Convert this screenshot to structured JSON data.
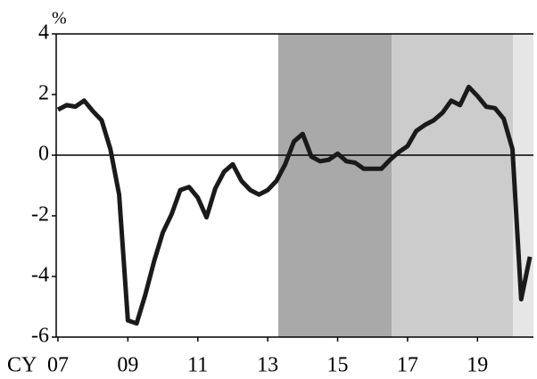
{
  "chart_data": {
    "type": "line",
    "y_unit_label": "%",
    "x_prefix_label": "CY",
    "x": [
      2007,
      2007.25,
      2007.5,
      2007.75,
      2008,
      2008.25,
      2008.5,
      2008.75,
      2009,
      2009.25,
      2009.5,
      2009.75,
      2010,
      2010.25,
      2010.5,
      2010.75,
      2011,
      2011.25,
      2011.5,
      2011.75,
      2012,
      2012.25,
      2012.5,
      2012.75,
      2013,
      2013.25,
      2013.5,
      2013.75,
      2014,
      2014.25,
      2014.5,
      2014.75,
      2015,
      2015.25,
      2015.5,
      2015.75,
      2016,
      2016.25,
      2016.5,
      2016.75,
      2017,
      2017.25,
      2017.5,
      2017.75,
      2018,
      2018.25,
      2018.5,
      2018.75,
      2019,
      2019.25,
      2019.5,
      2019.75,
      2020,
      2020.25,
      2020.5
    ],
    "series": [
      {
        "color": "#1a1a1a",
        "values": [
          1.5,
          1.65,
          1.6,
          1.8,
          1.45,
          1.15,
          0.2,
          -1.3,
          -5.45,
          -5.55,
          -4.6,
          -3.5,
          -2.55,
          -1.95,
          -1.15,
          -1.05,
          -1.4,
          -2.05,
          -1.1,
          -0.55,
          -0.3,
          -0.85,
          -1.15,
          -1.3,
          -1.15,
          -0.85,
          -0.3,
          0.45,
          0.7,
          -0.05,
          -0.2,
          -0.15,
          0.05,
          -0.2,
          -0.25,
          -0.45,
          -0.45,
          -0.45,
          -0.15,
          0.1,
          0.3,
          0.8,
          1.0,
          1.15,
          1.4,
          1.8,
          1.65,
          2.25,
          1.95,
          1.6,
          1.55,
          1.2,
          0.2,
          -4.75,
          -3.35
        ]
      }
    ],
    "shaded_regions": [
      {
        "start": 2013.3,
        "end": 2016.55,
        "color": "#a9a9a9"
      },
      {
        "start": 2016.55,
        "end": 2020.02,
        "color": "#cccccc"
      },
      {
        "start": 2020.02,
        "end": 2020.6,
        "color": "#e6e6e6"
      }
    ],
    "xlim": [
      2006.95,
      2020.6
    ],
    "xticks": [
      {
        "value": 2007,
        "label": "07"
      },
      {
        "value": 2009,
        "label": "09"
      },
      {
        "value": 2011,
        "label": "11"
      },
      {
        "value": 2013,
        "label": "13"
      },
      {
        "value": 2015,
        "label": "15"
      },
      {
        "value": 2017,
        "label": "17"
      },
      {
        "value": 2019,
        "label": "19"
      }
    ],
    "ylim": [
      -6,
      4
    ],
    "yticks": [
      4,
      2,
      0,
      -2,
      -4,
      -6
    ],
    "zero_line": true
  }
}
